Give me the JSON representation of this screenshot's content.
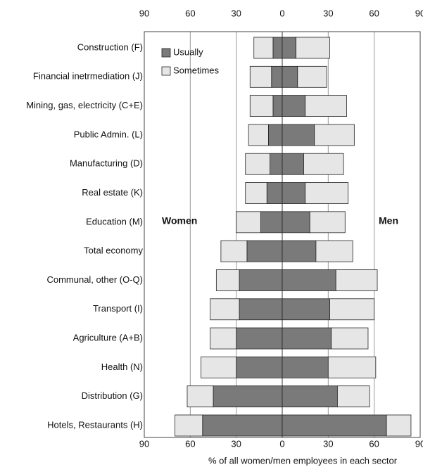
{
  "chart_data": {
    "type": "diverging-bar",
    "categories": [
      "Construction (F)",
      "Financial inetrmediation (J)",
      "Mining, gas, electricity (C+E)",
      "Public Admin. (L)",
      "Manufacturing (D)",
      "Real estate (K)",
      "Education (M)",
      "Total economy",
      "Communal, other (O-Q)",
      "Transport (I)",
      "Agriculture (A+B)",
      "Health (N)",
      "Distribution (G)",
      "Hotels, Restaurants (H)"
    ],
    "groups": [
      {
        "name": "Women",
        "series": [
          {
            "name": "Usually",
            "color": "#7a7a7a",
            "values": [
              -6,
              -7,
              -6,
              -9,
              -8,
              -10,
              -14,
              -23,
              -28,
              -28,
              -30,
              -30,
              -45,
              -52
            ]
          },
          {
            "name": "Sometimes",
            "color": "#e6e6e6",
            "values": [
              -12.5,
              -14,
              -15,
              -13,
              -16,
              -14,
              -16,
              -17,
              -15,
              -19,
              -17,
              -23,
              -17,
              -18
            ]
          }
        ]
      },
      {
        "name": "Men",
        "series": [
          {
            "name": "Usually",
            "color": "#7a7a7a",
            "values": [
              9,
              10,
              15,
              21,
              14,
              15,
              18,
              22,
              35,
              31,
              32,
              30,
              36,
              68
            ]
          },
          {
            "name": "Sometimes",
            "color": "#e6e6e6",
            "values": [
              22,
              19,
              27,
              26,
              26,
              28,
              23,
              24,
              27,
              29,
              24,
              31,
              21,
              16
            ]
          }
        ]
      }
    ],
    "xlim": [
      -90,
      90
    ],
    "xticks": [
      {
        "value": -90,
        "label": "90"
      },
      {
        "value": -60,
        "label": "60"
      },
      {
        "value": -30,
        "label": "30"
      },
      0,
      30,
      60,
      90
    ],
    "xlabel": "% of all women/men employees in each sector",
    "grid": true,
    "legend": "top-left"
  }
}
